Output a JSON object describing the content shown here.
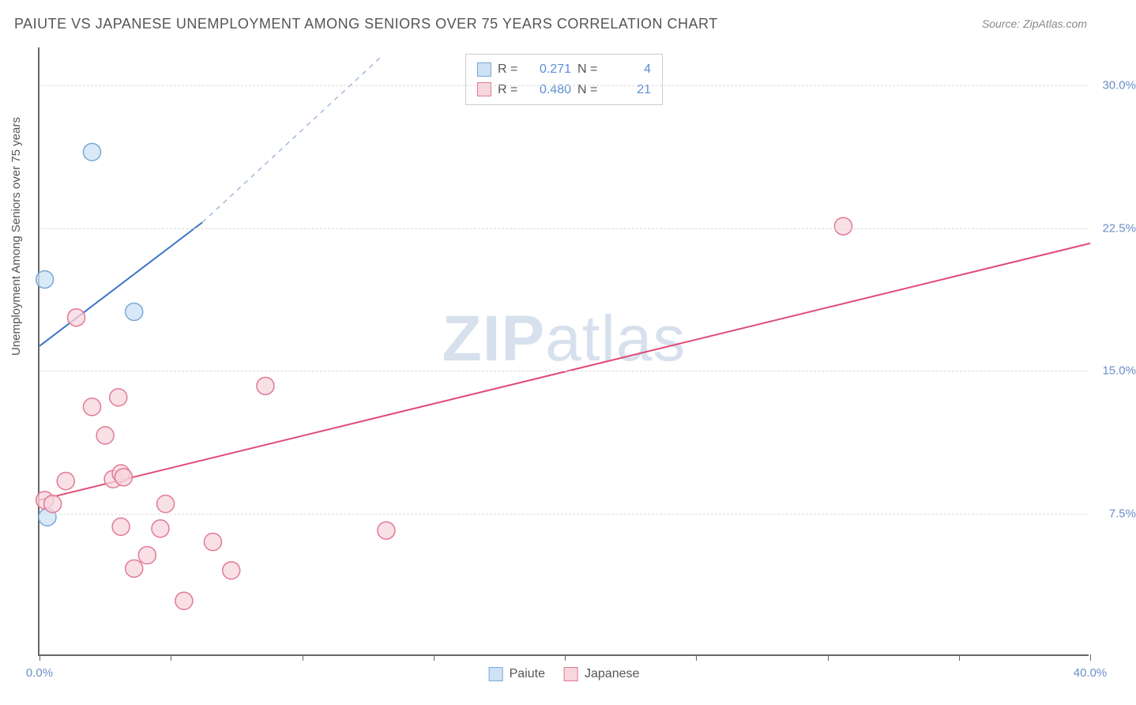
{
  "title": "PAIUTE VS JAPANESE UNEMPLOYMENT AMONG SENIORS OVER 75 YEARS CORRELATION CHART",
  "source": "Source: ZipAtlas.com",
  "watermark": {
    "part1": "ZIP",
    "part2": "atlas"
  },
  "y_axis_label": "Unemployment Among Seniors over 75 years",
  "chart": {
    "type": "scatter",
    "background_color": "#ffffff",
    "grid_color": "#dddddd",
    "axis_color": "#666666",
    "xlim": [
      0,
      40
    ],
    "ylim": [
      0,
      32
    ],
    "x_ticks": [
      0,
      5,
      10,
      15,
      20,
      25,
      30,
      35,
      40
    ],
    "x_tick_labels": {
      "0": "0.0%",
      "40": "40.0%"
    },
    "y_ticks": [
      7.5,
      15.0,
      22.5,
      30.0
    ],
    "y_tick_labels": [
      "7.5%",
      "15.0%",
      "22.5%",
      "30.0%"
    ],
    "series": [
      {
        "name": "Paiute",
        "marker_fill": "#cde2f5",
        "marker_stroke": "#7aa8d6",
        "marker_radius": 11,
        "line_color": "#3b76c4",
        "line_dash_color": "#9fb9d9",
        "line_width": 2,
        "R": "0.271",
        "N": "4",
        "points": [
          {
            "x": 0.3,
            "y": 7.3
          },
          {
            "x": 0.2,
            "y": 19.8
          },
          {
            "x": 2.0,
            "y": 26.5
          },
          {
            "x": 3.6,
            "y": 18.1
          }
        ],
        "trend": {
          "x1": 0,
          "y1": 16.3,
          "x2": 6.2,
          "y2": 22.8,
          "dash_to_x": 13.0,
          "dash_to_y": 31.5
        }
      },
      {
        "name": "Japanese",
        "marker_fill": "#f7d6de",
        "marker_stroke": "#e07a95",
        "marker_radius": 11,
        "line_color": "#e04a76",
        "line_width": 2,
        "R": "0.480",
        "N": "21",
        "points": [
          {
            "x": 0.2,
            "y": 8.2
          },
          {
            "x": 0.5,
            "y": 8.0
          },
          {
            "x": 1.4,
            "y": 17.8
          },
          {
            "x": 2.0,
            "y": 13.1
          },
          {
            "x": 3.0,
            "y": 13.6
          },
          {
            "x": 2.5,
            "y": 11.6
          },
          {
            "x": 2.8,
            "y": 9.3
          },
          {
            "x": 3.1,
            "y": 9.6
          },
          {
            "x": 3.2,
            "y": 9.4
          },
          {
            "x": 3.1,
            "y": 6.8
          },
          {
            "x": 3.6,
            "y": 4.6
          },
          {
            "x": 4.8,
            "y": 8.0
          },
          {
            "x": 4.6,
            "y": 6.7
          },
          {
            "x": 4.1,
            "y": 5.3
          },
          {
            "x": 5.5,
            "y": 2.9
          },
          {
            "x": 6.6,
            "y": 6.0
          },
          {
            "x": 7.3,
            "y": 4.5
          },
          {
            "x": 8.6,
            "y": 14.2
          },
          {
            "x": 13.2,
            "y": 6.6
          },
          {
            "x": 30.6,
            "y": 22.6
          },
          {
            "x": 1.0,
            "y": 9.2
          }
        ],
        "trend": {
          "x1": 0,
          "y1": 8.2,
          "x2": 40,
          "y2": 21.7
        }
      }
    ]
  },
  "legend_top": {
    "r_label": "R  =",
    "n_label": "N  ="
  },
  "legend_bottom": {
    "items": [
      "Paiute",
      "Japanese"
    ]
  }
}
